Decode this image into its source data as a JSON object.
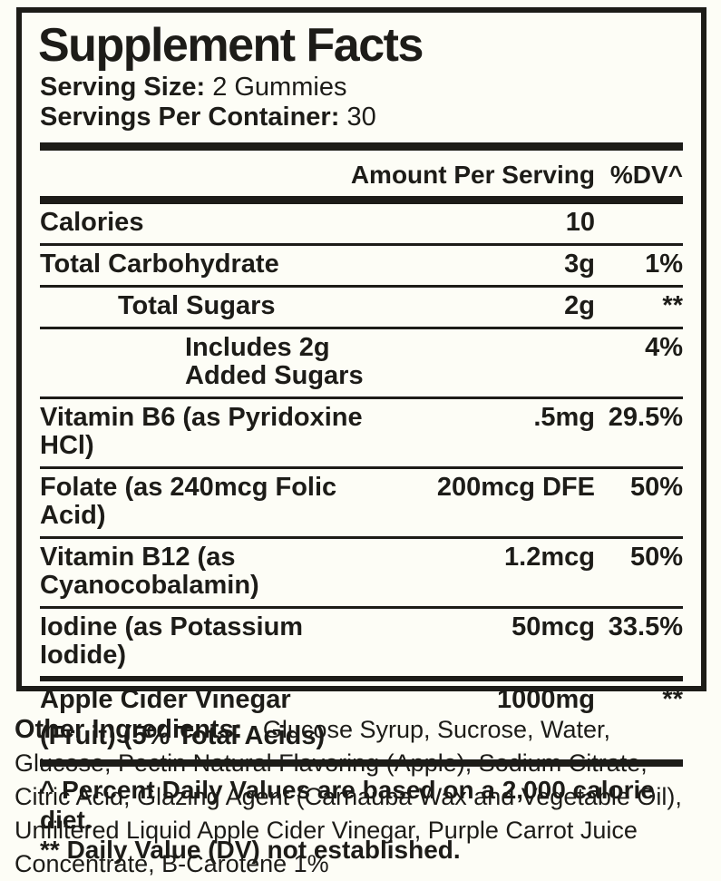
{
  "panel": {
    "title": "Supplement Facts",
    "serving_size": {
      "label": "Serving Size:",
      "value": "2 Gummies"
    },
    "servings_per_container": {
      "label": "Servings Per Container:",
      "value": "30"
    },
    "columns": {
      "amount": "Amount Per Serving",
      "dv": "%DV^"
    },
    "rows": [
      {
        "name": "Calories",
        "amount": "10",
        "dv": "",
        "indent": 0
      },
      {
        "name": "Total Carbohydrate",
        "amount": "3g",
        "dv": "1%",
        "indent": 0
      },
      {
        "name": "Total Sugars",
        "amount": "2g",
        "dv": "**",
        "indent": 1
      },
      {
        "name": "Includes 2g Added Sugars",
        "amount": "",
        "dv": "4%",
        "indent": 2
      },
      {
        "name": "Vitamin B6 (as Pyridoxine HCl)",
        "amount": ".5mg",
        "dv": "29.5%",
        "indent": 0
      },
      {
        "name": "Folate (as 240mcg Folic Acid)",
        "amount": "200mcg DFE",
        "dv": "50%",
        "indent": 0
      },
      {
        "name": "Vitamin B12 (as Cyanocobalamin)",
        "amount": "1.2mcg",
        "dv": "50%",
        "indent": 0
      },
      {
        "name": "Iodine (as Potassium Iodide)",
        "amount": "50mcg",
        "dv": "33.5%",
        "indent": 0
      },
      {
        "name": "Apple Cider Vinegar",
        "name_line2": "(Fruit) (5% Total Acids)",
        "amount": "1000mg",
        "dv": "**",
        "indent": 0,
        "emphasis_divider_above": true
      }
    ],
    "footnotes": [
      "^ Percent Daily Values are based on a 2,000 calorie diet.",
      "** Daily Value (DV) not established."
    ]
  },
  "other_ingredients": {
    "label": "Other Ingredients:",
    "text": "Glucose Syrup, Sucrose, Water, Glucose, Pectin Natural Flavoring (Apple), Sodium Citrate, Citric Acid, Glazing Agent (Carnauba Wax and Vegetable Oil), Unfiltered Liquid Apple Cider Vinegar, Purple Carrot Juice Concentrate, B-Carotene 1%"
  },
  "colors": {
    "ink": "#1d1c18",
    "background": "#fdfdf6"
  }
}
